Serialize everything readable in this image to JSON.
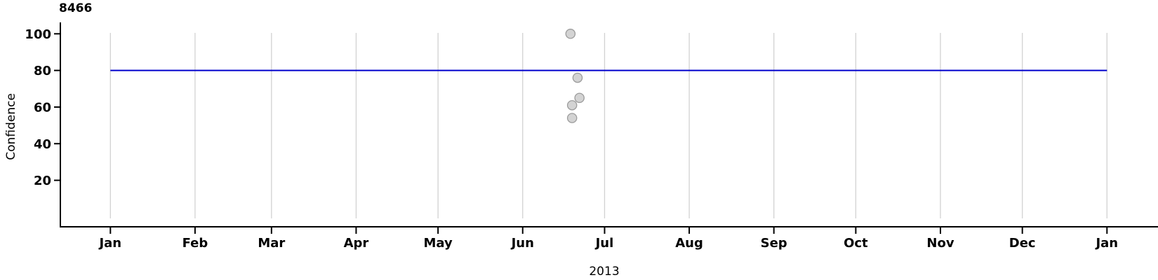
{
  "chart_data": {
    "type": "scatter",
    "title": "8466",
    "xlabel": "2013",
    "ylabel": "Confidence",
    "x_axis": {
      "kind": "date",
      "year_label": "2013",
      "range_days": [
        0,
        365
      ],
      "month_ticks": [
        {
          "label": "Jan",
          "day": 0
        },
        {
          "label": "Feb",
          "day": 31
        },
        {
          "label": "Mar",
          "day": 59
        },
        {
          "label": "Apr",
          "day": 90
        },
        {
          "label": "May",
          "day": 120
        },
        {
          "label": "Jun",
          "day": 151
        },
        {
          "label": "Jul",
          "day": 181
        },
        {
          "label": "Aug",
          "day": 212
        },
        {
          "label": "Sep",
          "day": 243
        },
        {
          "label": "Oct",
          "day": 273
        },
        {
          "label": "Nov",
          "day": 304
        },
        {
          "label": "Dec",
          "day": 334
        },
        {
          "label": "Jan",
          "day": 365
        }
      ]
    },
    "y_axis": {
      "ticks": [
        20,
        40,
        60,
        80,
        100
      ],
      "range": [
        0,
        100.5
      ]
    },
    "points": [
      {
        "date": "2013-06-18",
        "day": 168.5,
        "confidence": 100
      },
      {
        "date": "2013-06-21",
        "day": 171.1,
        "confidence": 76
      },
      {
        "date": "2013-06-22",
        "day": 171.8,
        "confidence": 65
      },
      {
        "date": "2013-06-19",
        "day": 169.1,
        "confidence": 61
      },
      {
        "date": "2013-06-19",
        "day": 169.1,
        "confidence": 54
      }
    ],
    "reference_line": {
      "y": 80,
      "from_day": 0,
      "to_day": 365
    },
    "grid": {
      "vertical_month_lines": true,
      "horizontal_lines": false
    },
    "legend_position": "none",
    "colors": {
      "reference_line": "#0000CC",
      "point_fill": "#D3D3D3",
      "point_stroke": "#9C9C9C",
      "gridline": "#D2D2D2",
      "axis": "#000000",
      "text": "#000000",
      "background": "#FFFFFF"
    }
  }
}
